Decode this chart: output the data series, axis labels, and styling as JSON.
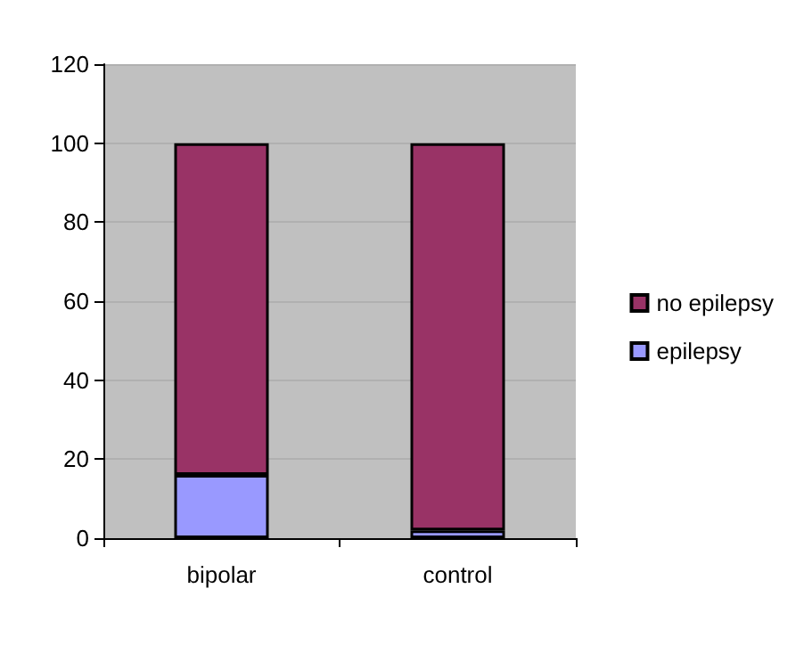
{
  "chart_data": {
    "type": "bar",
    "stacked": true,
    "categories": [
      "bipolar",
      "control"
    ],
    "series": [
      {
        "name": "epilepsy",
        "color": "#9999ff",
        "values": [
          16,
          2
        ]
      },
      {
        "name": "no epilepsy",
        "color": "#993366",
        "values": [
          84,
          98
        ]
      }
    ],
    "ylim": [
      0,
      120
    ],
    "yticks": [
      0,
      20,
      40,
      60,
      80,
      100,
      120
    ],
    "grid": "y",
    "legend": "right"
  }
}
